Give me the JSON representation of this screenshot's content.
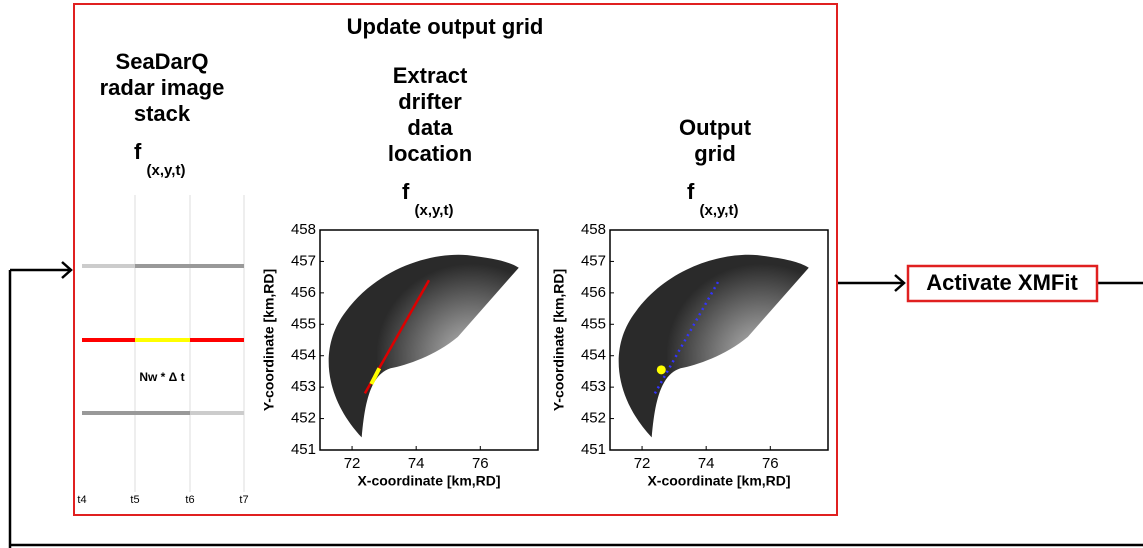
{
  "title": "Update output grid",
  "panels": [
    {
      "title_lines": [
        "SeaDarQ",
        "radar image",
        "stack"
      ],
      "function_label": "f",
      "function_args": "(x,y,t)",
      "timeline": {
        "ticks": [
          "t4",
          "t5",
          "t6",
          "t7"
        ],
        "window_label": "Nw * Δ t"
      }
    },
    {
      "title_lines": [
        "Extract",
        "drifter",
        "data",
        "location"
      ],
      "function_label": "f",
      "function_args": "(x,y,t)",
      "xlabel": "X-coordinate [km,RD]",
      "ylabel": "Y-coordinate [km,RD]",
      "xlim": [
        71,
        77.8
      ],
      "ylim": [
        451,
        458
      ],
      "xticks": [
        72,
        74,
        76
      ],
      "yticks": [
        451,
        452,
        453,
        454,
        455,
        456,
        457,
        458
      ]
    },
    {
      "title_lines": [
        "Output",
        "grid"
      ],
      "function_label": "f",
      "function_args": "(x,y,t)",
      "xlabel": "X-coordinate [km,RD]",
      "ylabel": "Y-coordinate [km,RD]",
      "xlim": [
        71,
        77.8
      ],
      "ylim": [
        451,
        458
      ],
      "xticks": [
        72,
        74,
        76
      ],
      "yticks": [
        451,
        452,
        453,
        454,
        455,
        456,
        457,
        458
      ]
    }
  ],
  "action": "Activate XMFit"
}
